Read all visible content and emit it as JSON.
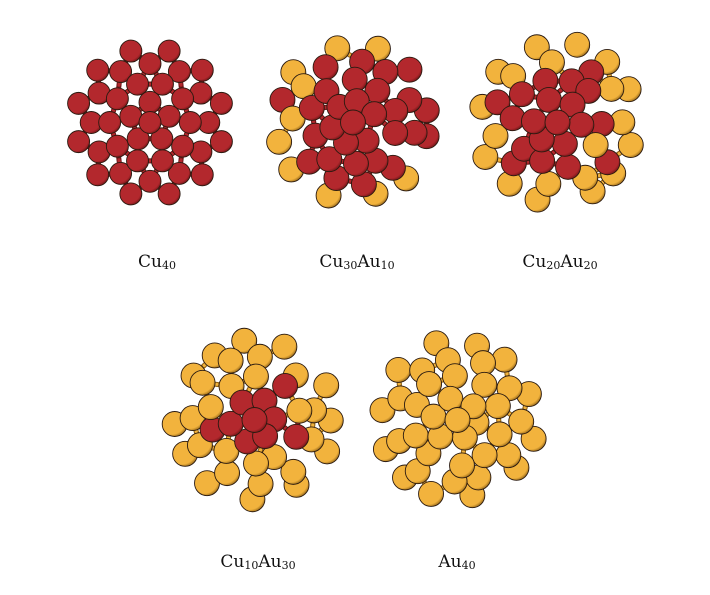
{
  "figure": {
    "clusters": [
      {
        "id": "cu40",
        "formula": [
          {
            "el": "Cu",
            "n": "40"
          }
        ],
        "cu": 40,
        "au": 0
      },
      {
        "id": "cu30au10",
        "formula": [
          {
            "el": "Cu",
            "n": "30"
          },
          {
            "el": "Au",
            "n": "10"
          }
        ],
        "cu": 30,
        "au": 10
      },
      {
        "id": "cu20au20",
        "formula": [
          {
            "el": "Cu",
            "n": "20"
          },
          {
            "el": "Au",
            "n": "20"
          }
        ],
        "cu": 20,
        "au": 20
      },
      {
        "id": "cu10au30",
        "formula": [
          {
            "el": "Cu",
            "n": "10"
          },
          {
            "el": "Au",
            "n": "30"
          }
        ],
        "cu": 10,
        "au": 30
      },
      {
        "id": "au40",
        "formula": [
          {
            "el": "Au",
            "n": "40"
          }
        ],
        "cu": 0,
        "au": 40
      }
    ],
    "colors": {
      "cu": "#b3282d",
      "cu_dark": "#6e1517",
      "au": "#f2b33d",
      "au_dark": "#8f6216",
      "outline": "#2a1a10"
    }
  }
}
